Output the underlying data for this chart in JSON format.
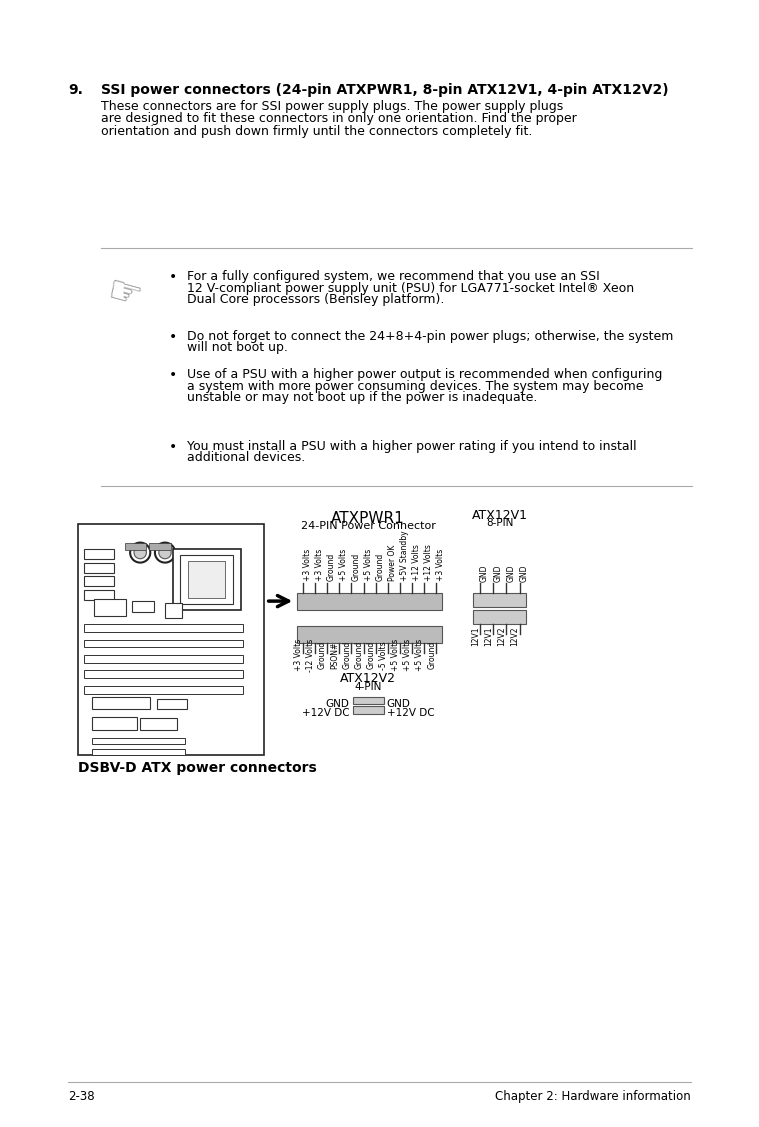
{
  "background_color": "#ffffff",
  "text_color": "#000000",
  "section_number": "9.",
  "section_title": "SSI power connectors (24-pin ATXPWR1, 8-pin ATX12V1, 4-pin ATX12V2)",
  "body_text": [
    "These connectors are for SSI power supply plugs. The power supply plugs",
    "are designed to fit these connectors in only one orientation. Find the proper",
    "orientation and push down firmly until the connectors completely fit."
  ],
  "bullet_items": [
    "For a fully configured system, we recommend that you use an SSI\n12 V-compliant power supply unit (PSU) for LGA771-socket Intel® Xeon\nDual Core processors (Bensley platform).",
    "Do not forget to connect the 24+8+4-pin power plugs; otherwise, the system\nwill not boot up.",
    "Use of a PSU with a higher power output is recommended when configuring\na system with more power consuming devices. The system may become\nunstable or may not boot up if the power is inadequate.",
    "You must install a PSU with a higher power rating if you intend to install\nadditional devices."
  ],
  "diagram_label": "DSBV-D ATX power connectors",
  "atxpwr1_title": "ATXPWR1",
  "atxpwr1_subtitle": "24-PIN Power Connector",
  "atx12v1_title": "ATX12V1",
  "atx12v1_subtitle": "8-PIN",
  "atx12v2_title": "ATX12V2",
  "atx12v2_subtitle": "4-PIN",
  "top_pins": [
    "+3 Volts",
    "+3 Volts",
    "Ground",
    "+5 Volts",
    "Ground",
    "+5 Volts",
    "Ground",
    "Power OK",
    "+5V Standby",
    "+12 Volts",
    "+12 Volts",
    "+3 Volts"
  ],
  "bot_pins": [
    "+3 Volts",
    "-12 Volts",
    "Ground",
    "PSON#",
    "Ground",
    "Ground",
    "Ground",
    "-5 Volts",
    "+5 Volts",
    "+5 Volts",
    "+5 Volts",
    "Ground"
  ],
  "atx12v1_top": [
    "GND",
    "GND",
    "GND",
    "GND"
  ],
  "atx12v1_bot": [
    "12V1",
    "12V1",
    "12V2",
    "12V2"
  ],
  "atx12v2_left": [
    "GND",
    "+12V DC"
  ],
  "atx12v2_right": [
    "GND",
    "+12V DC"
  ],
  "footer_left": "2-38",
  "footer_right": "Chapter 2: Hardware information"
}
